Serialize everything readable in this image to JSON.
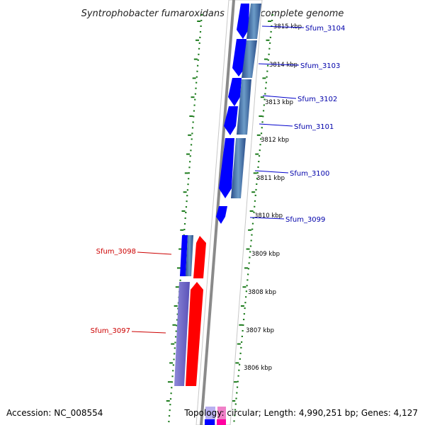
{
  "title": "Syntrophobacter fumaroxidans MPOB, complete genome",
  "footer": {
    "accession": "Accession: NC_008554",
    "summary": "Topology: circular; Length: 4,990,251 bp; Genes: 4,127"
  },
  "ticks": [
    "3815 kbp",
    "3814 kbp",
    "3813 kbp",
    "3812 kbp",
    "3811 kbp",
    "3810 kbp",
    "3809 kbp",
    "3808 kbp",
    "3807 kbp",
    "3806 kbp"
  ],
  "genes_forward": [
    "Sfum_3104",
    "Sfum_3103",
    "Sfum_3102",
    "Sfum_3101",
    "Sfum_3100",
    "Sfum_3099"
  ],
  "genes_reverse": [
    "Sfum_3098",
    "Sfum_3097"
  ],
  "colors": {
    "forward_cds": "#0000ff",
    "reverse_cds": "#ff0000",
    "forward_label": "#0000aa",
    "reverse_label": "#cc0000",
    "backbone": "#888888",
    "ruler_dots": "#1a7a1a"
  },
  "icons": [
    "gene-arrow-icon"
  ]
}
